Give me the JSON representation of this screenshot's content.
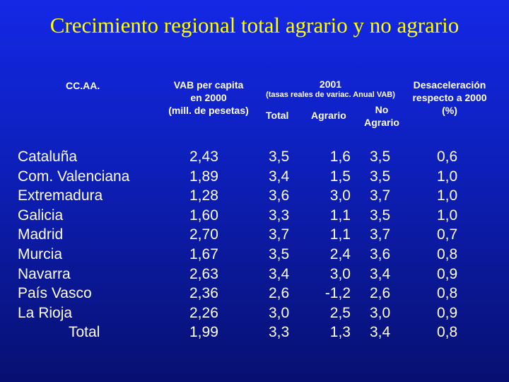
{
  "title": "Crecimiento regional total agrario y no agrario",
  "headers": {
    "ccaa": "CC.AA.",
    "vab_line1": "VAB per capita",
    "vab_line2": "en 2000",
    "vab_line3": "(mill. de pesetas)",
    "year": "2001",
    "year_sub": "(tasas reales de variac. Anual VAB)",
    "total": "Total",
    "agrario": "Agrario",
    "no_agrario_line1": "No",
    "no_agrario_line2": "Agrario",
    "des_line1": "Desaceleración",
    "des_line2": "respecto a 2000",
    "des_line3": "(%)"
  },
  "rows": [
    {
      "name": "Cataluña",
      "vab": "2,43",
      "total": "3,5",
      "agrario": "1,6",
      "no_agrario": "3,5",
      "des": "0,6"
    },
    {
      "name": "Com. Valenciana",
      "vab": "1,89",
      "total": "3,4",
      "agrario": "1,5",
      "no_agrario": "3,5",
      "des": "1,0"
    },
    {
      "name": "Extremadura",
      "vab": "1,28",
      "total": "3,6",
      "agrario": "3,0",
      "no_agrario": "3,7",
      "des": "1,0"
    },
    {
      "name": "Galicia",
      "vab": "1,60",
      "total": "3,3",
      "agrario": "1,1",
      "no_agrario": "3,5",
      "des": "1,0"
    },
    {
      "name": "Madrid",
      "vab": "2,70",
      "total": "3,7",
      "agrario": "1,1",
      "no_agrario": "3,7",
      "des": "0,7"
    },
    {
      "name": "Murcia",
      "vab": "1,67",
      "total": "3,5",
      "agrario": "2,4",
      "no_agrario": "3,6",
      "des": "0,8"
    },
    {
      "name": "Navarra",
      "vab": "2,63",
      "total": "3,4",
      "agrario": "3,0",
      "no_agrario": "3,4",
      "des": "0,9"
    },
    {
      "name": "País Vasco",
      "vab": "2,36",
      "total": "2,6",
      "agrario": "-1,2",
      "no_agrario": "2,6",
      "des": "0,8"
    },
    {
      "name": "La Rioja",
      "vab": "2,26",
      "total": "3,0",
      "agrario": "2,5",
      "no_agrario": "3,0",
      "des": "0,9"
    },
    {
      "name": "Total",
      "vab": "1,99",
      "total": "3,3",
      "agrario": "1,3",
      "no_agrario": "3,4",
      "des": "0,8"
    }
  ]
}
